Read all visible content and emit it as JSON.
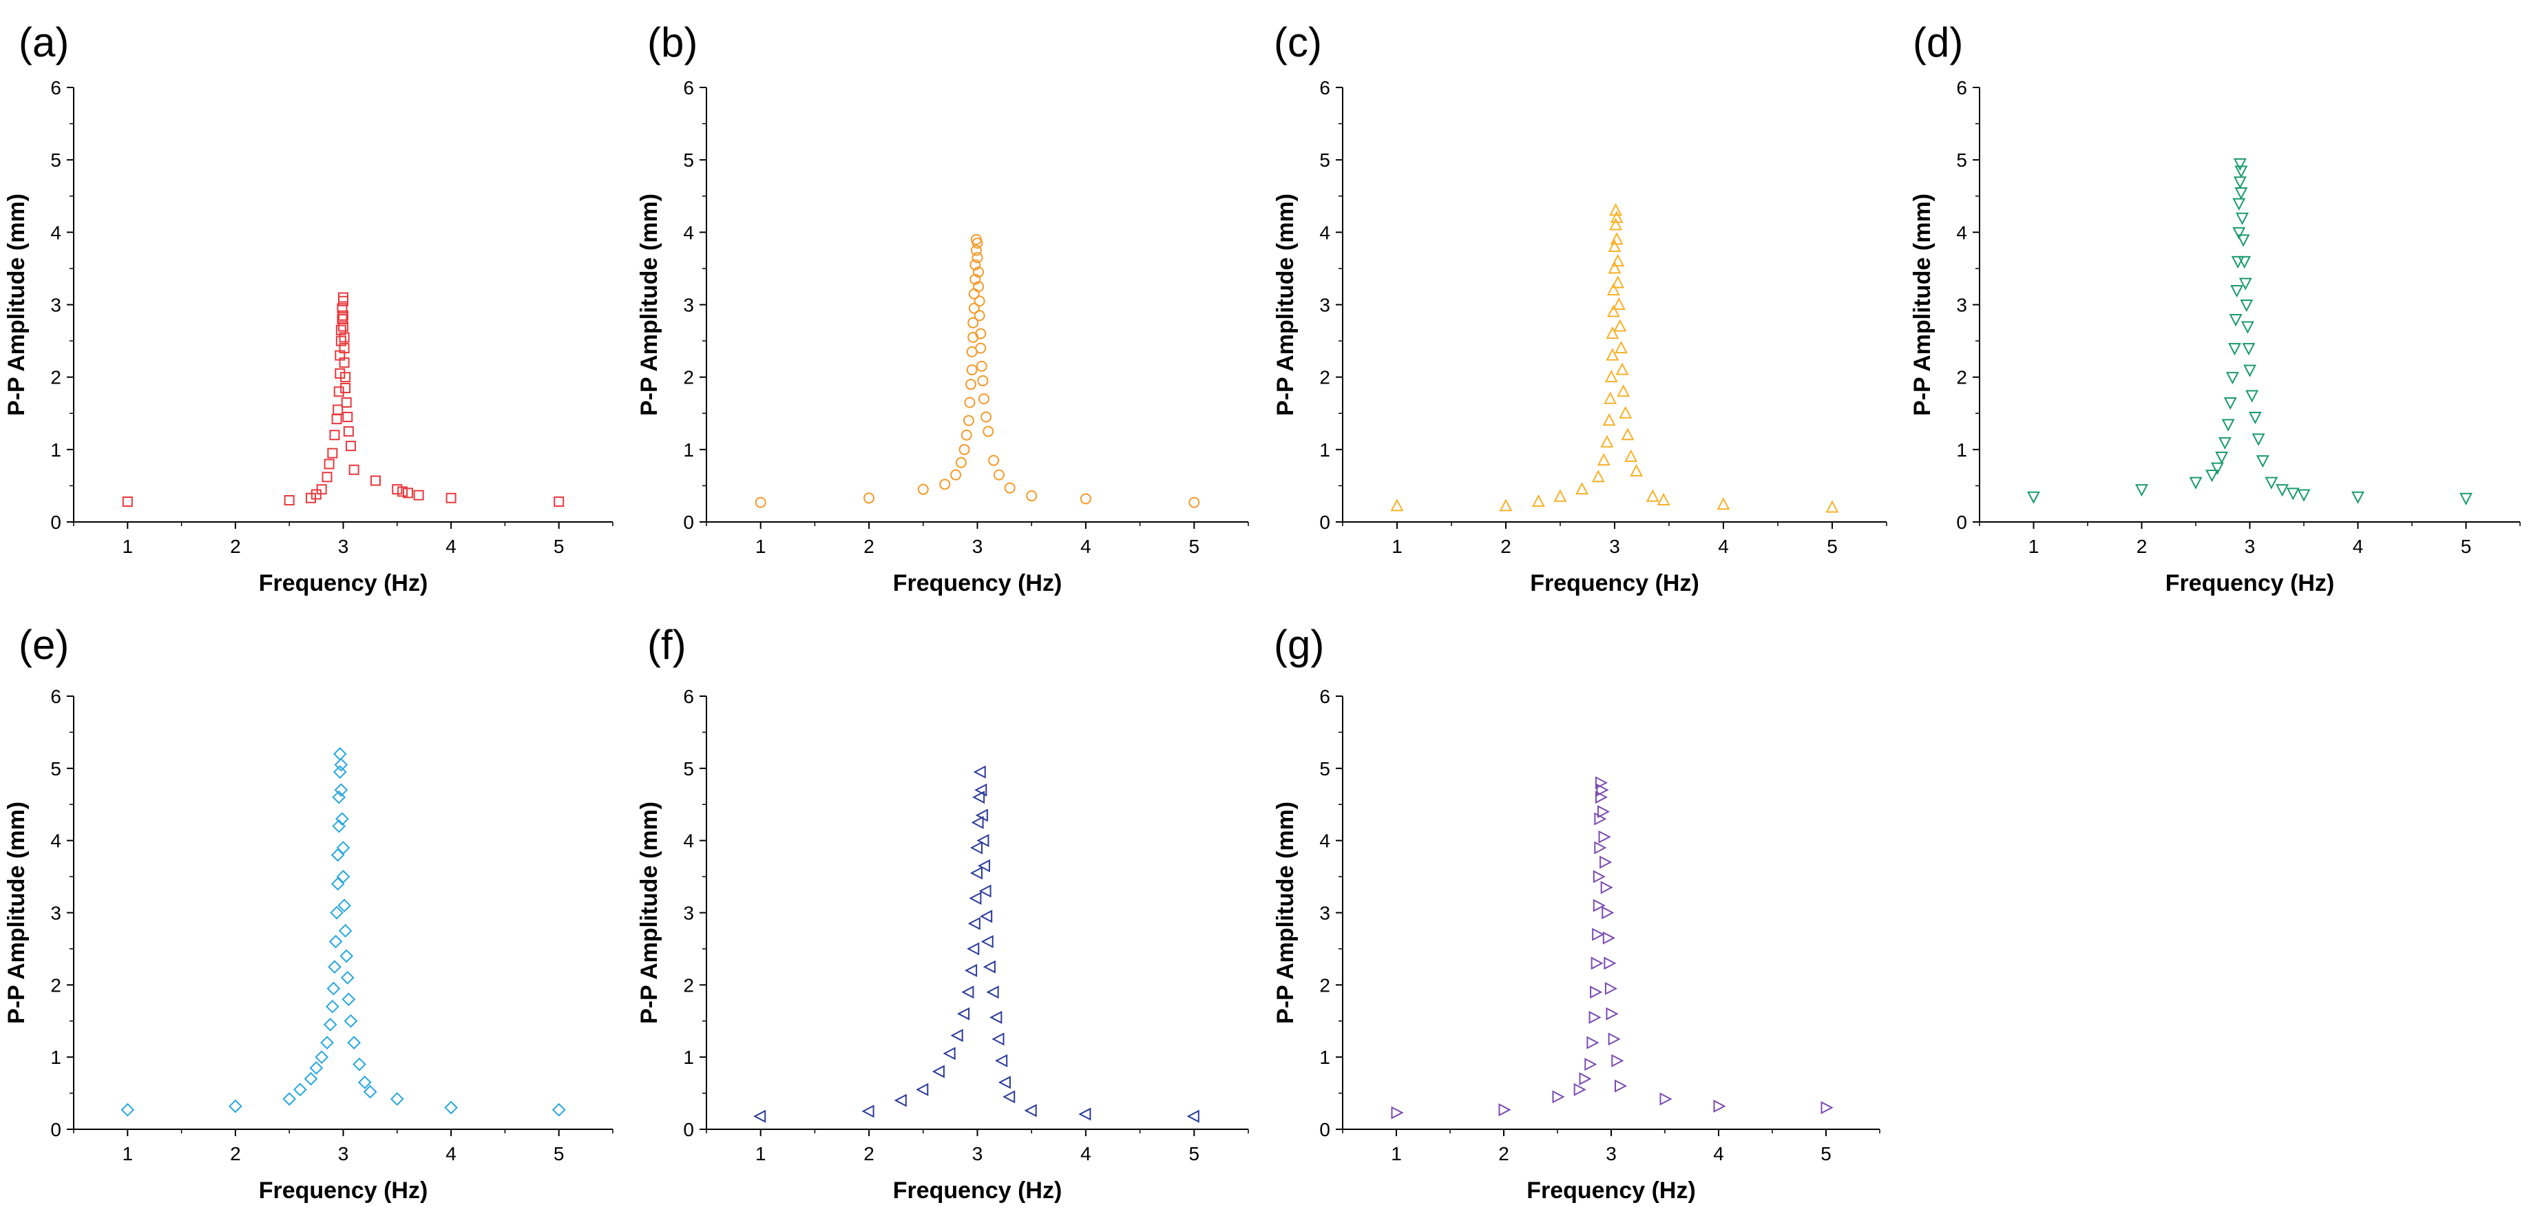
{
  "figure": {
    "panel_count": 7
  },
  "chart_data": [
    {
      "panel": "(a)",
      "type": "scatter",
      "marker": "square",
      "color": "#e8393d",
      "xlabel": "Frequency (Hz)",
      "ylabel": "P-P Amplitude (mm)",
      "xlim": [
        0.5,
        5.5
      ],
      "ylim": [
        0,
        6
      ],
      "xticks": [
        "1",
        "2",
        "3",
        "4",
        "5"
      ],
      "yticks": [
        "0",
        "1",
        "2",
        "3",
        "4",
        "5",
        "6"
      ],
      "x": [
        1,
        2.5,
        2.7,
        2.75,
        2.8,
        2.85,
        2.87,
        2.9,
        2.92,
        2.94,
        2.95,
        2.96,
        2.97,
        2.97,
        2.98,
        2.98,
        2.99,
        2.99,
        3.0,
        3.0,
        3.0,
        3.0,
        3.01,
        3.01,
        3.01,
        3.02,
        3.02,
        3.03,
        3.04,
        3.05,
        3.07,
        3.1,
        3.3,
        3.5,
        3.55,
        3.6,
        3.7,
        4,
        5
      ],
      "y": [
        0.28,
        0.3,
        0.33,
        0.38,
        0.45,
        0.62,
        0.8,
        0.95,
        1.2,
        1.42,
        1.55,
        1.8,
        2.05,
        2.3,
        2.5,
        2.65,
        2.8,
        2.95,
        3.1,
        3.05,
        2.85,
        2.7,
        2.55,
        2.4,
        2.2,
        2.0,
        1.85,
        1.65,
        1.45,
        1.25,
        1.05,
        0.72,
        0.57,
        0.45,
        0.42,
        0.4,
        0.37,
        0.33,
        0.28
      ]
    },
    {
      "panel": "(b)",
      "type": "scatter",
      "marker": "circle",
      "color": "#f39a2a",
      "xlabel": "Frequency (Hz)",
      "ylabel": "P-P Amplitude (mm)",
      "xlim": [
        0.5,
        5.5
      ],
      "ylim": [
        0,
        6
      ],
      "xticks": [
        "1",
        "2",
        "3",
        "4",
        "5"
      ],
      "yticks": [
        "0",
        "1",
        "2",
        "3",
        "4",
        "5",
        "6"
      ],
      "x": [
        1,
        2,
        2.5,
        2.7,
        2.8,
        2.85,
        2.88,
        2.9,
        2.92,
        2.93,
        2.94,
        2.95,
        2.95,
        2.96,
        2.96,
        2.97,
        2.97,
        2.98,
        2.98,
        2.99,
        2.99,
        3.0,
        3.0,
        3.01,
        3.01,
        3.02,
        3.02,
        3.03,
        3.03,
        3.04,
        3.05,
        3.06,
        3.08,
        3.1,
        3.15,
        3.2,
        3.3,
        3.5,
        4,
        5
      ],
      "y": [
        0.27,
        0.33,
        0.45,
        0.52,
        0.65,
        0.82,
        1.0,
        1.2,
        1.4,
        1.65,
        1.9,
        2.1,
        2.35,
        2.55,
        2.75,
        2.95,
        3.15,
        3.35,
        3.55,
        3.75,
        3.9,
        3.85,
        3.65,
        3.45,
        3.25,
        3.05,
        2.85,
        2.6,
        2.4,
        2.15,
        1.95,
        1.7,
        1.45,
        1.25,
        0.85,
        0.65,
        0.47,
        0.36,
        0.32,
        0.27
      ]
    },
    {
      "panel": "(c)",
      "type": "scatter",
      "marker": "triangle-up",
      "color": "#f7b128",
      "xlabel": "Frequency (Hz)",
      "ylabel": "P-P Amplitude (mm)",
      "xlim": [
        0.5,
        5.5
      ],
      "ylim": [
        0,
        6
      ],
      "xticks": [
        "1",
        "2",
        "3",
        "4",
        "5"
      ],
      "yticks": [
        "0",
        "1",
        "2",
        "3",
        "4",
        "5",
        "6"
      ],
      "x": [
        1,
        2,
        2.3,
        2.5,
        2.7,
        2.85,
        2.9,
        2.93,
        2.95,
        2.96,
        2.97,
        2.98,
        2.98,
        2.99,
        2.99,
        3.0,
        3.0,
        3.01,
        3.01,
        3.02,
        3.02,
        3.03,
        3.03,
        3.04,
        3.05,
        3.06,
        3.07,
        3.08,
        3.1,
        3.12,
        3.15,
        3.2,
        3.35,
        3.45,
        4,
        5
      ],
      "y": [
        0.22,
        0.22,
        0.28,
        0.35,
        0.45,
        0.62,
        0.85,
        1.1,
        1.4,
        1.7,
        2.0,
        2.3,
        2.6,
        2.9,
        3.2,
        3.5,
        3.8,
        4.1,
        4.3,
        4.2,
        3.9,
        3.6,
        3.3,
        3.0,
        2.7,
        2.4,
        2.1,
        1.8,
        1.5,
        1.2,
        0.9,
        0.7,
        0.35,
        0.3,
        0.24,
        0.2
      ]
    },
    {
      "panel": "(d)",
      "type": "scatter",
      "marker": "triangle-down",
      "color": "#1a9a6c",
      "xlabel": "Frequency (Hz)",
      "ylabel": "P-P Amplitude (mm)",
      "xlim": [
        0.5,
        5.5
      ],
      "ylim": [
        0,
        6
      ],
      "xticks": [
        "1",
        "2",
        "3",
        "4",
        "5"
      ],
      "yticks": [
        "0",
        "1",
        "2",
        "3",
        "4",
        "5",
        "6"
      ],
      "x": [
        1,
        2,
        2.5,
        2.65,
        2.7,
        2.74,
        2.77,
        2.8,
        2.82,
        2.84,
        2.86,
        2.87,
        2.88,
        2.89,
        2.9,
        2.9,
        2.91,
        2.91,
        2.92,
        2.92,
        2.93,
        2.94,
        2.95,
        2.96,
        2.97,
        2.98,
        2.99,
        3.0,
        3.02,
        3.05,
        3.08,
        3.12,
        3.2,
        3.3,
        3.4,
        3.5,
        4,
        5
      ],
      "y": [
        0.35,
        0.45,
        0.55,
        0.65,
        0.75,
        0.9,
        1.1,
        1.35,
        1.65,
        2.0,
        2.4,
        2.8,
        3.2,
        3.6,
        4.0,
        4.4,
        4.7,
        4.95,
        4.85,
        4.55,
        4.2,
        3.9,
        3.6,
        3.3,
        3.0,
        2.7,
        2.4,
        2.1,
        1.75,
        1.45,
        1.15,
        0.85,
        0.55,
        0.45,
        0.4,
        0.38,
        0.35,
        0.33
      ]
    },
    {
      "panel": "(e)",
      "type": "scatter",
      "marker": "diamond",
      "color": "#29a7de",
      "xlabel": "Frequency (Hz)",
      "ylabel": "P-P Amplitude (mm)",
      "xlim": [
        0.5,
        5.5
      ],
      "ylim": [
        0,
        6
      ],
      "xticks": [
        "1",
        "2",
        "3",
        "4",
        "5"
      ],
      "yticks": [
        "0",
        "1",
        "2",
        "3",
        "4",
        "5",
        "6"
      ],
      "x": [
        1,
        2,
        2.5,
        2.6,
        2.7,
        2.75,
        2.8,
        2.85,
        2.88,
        2.9,
        2.91,
        2.92,
        2.93,
        2.94,
        2.95,
        2.95,
        2.96,
        2.96,
        2.97,
        2.97,
        2.98,
        2.98,
        2.99,
        3.0,
        3.0,
        3.01,
        3.02,
        3.03,
        3.04,
        3.05,
        3.07,
        3.1,
        3.15,
        3.2,
        3.25,
        3.5,
        4,
        5
      ],
      "y": [
        0.27,
        0.32,
        0.42,
        0.55,
        0.7,
        0.85,
        1.0,
        1.2,
        1.45,
        1.7,
        1.95,
        2.25,
        2.6,
        3.0,
        3.4,
        3.8,
        4.2,
        4.6,
        4.95,
        5.2,
        5.05,
        4.7,
        4.3,
        3.9,
        3.5,
        3.1,
        2.75,
        2.4,
        2.1,
        1.8,
        1.5,
        1.2,
        0.9,
        0.65,
        0.52,
        0.42,
        0.3,
        0.27
      ]
    },
    {
      "panel": "(f)",
      "type": "scatter",
      "marker": "triangle-left",
      "color": "#2b3a9a",
      "xlabel": "Frequency (Hz)",
      "ylabel": "P-P Amplitude (mm)",
      "xlim": [
        0.5,
        5.5
      ],
      "ylim": [
        0,
        6
      ],
      "xticks": [
        "1",
        "2",
        "3",
        "4",
        "5"
      ],
      "yticks": [
        "0",
        "1",
        "2",
        "3",
        "4",
        "5",
        "6"
      ],
      "x": [
        1,
        2,
        2.3,
        2.5,
        2.65,
        2.75,
        2.82,
        2.88,
        2.92,
        2.95,
        2.97,
        2.98,
        2.99,
        3.0,
        3.0,
        3.01,
        3.02,
        3.03,
        3.04,
        3.05,
        3.06,
        3.07,
        3.08,
        3.09,
        3.1,
        3.12,
        3.15,
        3.18,
        3.2,
        3.23,
        3.26,
        3.3,
        3.5,
        4,
        5
      ],
      "y": [
        0.18,
        0.25,
        0.4,
        0.55,
        0.8,
        1.05,
        1.3,
        1.6,
        1.9,
        2.2,
        2.5,
        2.85,
        3.2,
        3.55,
        3.9,
        4.25,
        4.6,
        4.95,
        4.7,
        4.35,
        4.0,
        3.65,
        3.3,
        2.95,
        2.6,
        2.25,
        1.9,
        1.55,
        1.25,
        0.95,
        0.65,
        0.45,
        0.26,
        0.21,
        0.18
      ]
    },
    {
      "panel": "(g)",
      "type": "scatter",
      "marker": "triangle-right",
      "color": "#7b4bb0",
      "xlabel": "Frequency (Hz)",
      "ylabel": "P-P Amplitude (mm)",
      "xlim": [
        0.5,
        5.5
      ],
      "ylim": [
        0,
        6
      ],
      "xticks": [
        "1",
        "2",
        "3",
        "4",
        "5"
      ],
      "yticks": [
        "0",
        "1",
        "2",
        "3",
        "4",
        "5",
        "6"
      ],
      "x": [
        1,
        2,
        2.5,
        2.7,
        2.75,
        2.8,
        2.82,
        2.84,
        2.85,
        2.86,
        2.87,
        2.88,
        2.88,
        2.89,
        2.89,
        2.9,
        2.9,
        2.91,
        2.92,
        2.93,
        2.94,
        2.95,
        2.96,
        2.97,
        2.98,
        2.99,
        3.0,
        3.02,
        3.05,
        3.08,
        3.5,
        4,
        5
      ],
      "y": [
        0.23,
        0.27,
        0.45,
        0.55,
        0.7,
        0.9,
        1.2,
        1.55,
        1.9,
        2.3,
        2.7,
        3.1,
        3.5,
        3.9,
        4.3,
        4.6,
        4.8,
        4.7,
        4.4,
        4.05,
        3.7,
        3.35,
        3.0,
        2.65,
        2.3,
        1.95,
        1.6,
        1.25,
        0.95,
        0.6,
        0.42,
        0.32,
        0.3
      ]
    }
  ]
}
